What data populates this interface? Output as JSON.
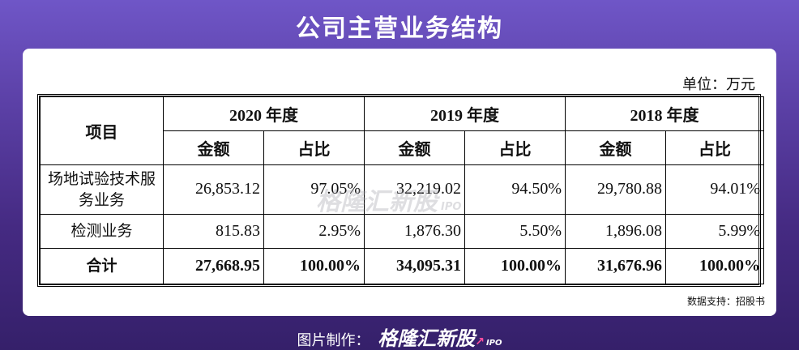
{
  "title": "公司主营业务结构",
  "unit": "单位：万元",
  "headers": {
    "item": "项目",
    "years": [
      "2020 年度",
      "2019 年度",
      "2018 年度"
    ],
    "amount": "金额",
    "ratio": "占比"
  },
  "rows": [
    {
      "name": "场地试验技术服务业务",
      "values": [
        "26,853.12",
        "97.05%",
        "32,219.02",
        "94.50%",
        "29,780.88",
        "94.01%"
      ]
    },
    {
      "name": "检测业务",
      "values": [
        "815.83",
        "2.95%",
        "1,876.30",
        "5.50%",
        "1,896.08",
        "5.99%"
      ]
    },
    {
      "name": "合计",
      "values": [
        "27,668.95",
        "100.00%",
        "34,095.31",
        "100.00%",
        "31,676.96",
        "100.00%"
      ]
    }
  ],
  "source": "数据支持：招股书",
  "watermark": {
    "brand": "格隆汇新股",
    "sub": "IPO"
  },
  "footer": {
    "label": "图片制作：",
    "brand": "格隆汇新股",
    "sub": "IPO"
  }
}
